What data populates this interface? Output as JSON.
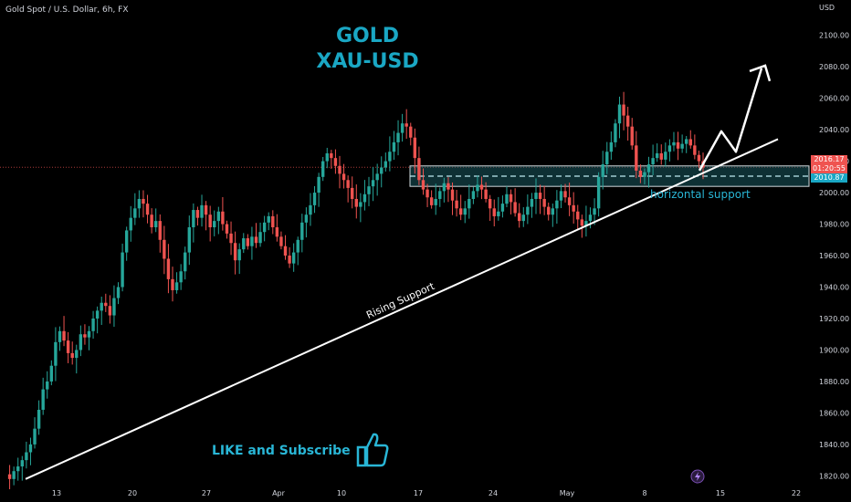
{
  "header": {
    "symbol": "Gold Spot / U.S. Dollar, 6h, FX"
  },
  "title": {
    "line1": "GOLD",
    "line2": "XAU-USD"
  },
  "annotations": {
    "rising_support": "Rising Support",
    "horizontal_support": "horizontal support",
    "like": "LIKE and Subscribe"
  },
  "price_axis": {
    "currency": "USD",
    "last_price": "2016.17",
    "countdown": "01:20:55",
    "second_price": "2010.87"
  },
  "colors": {
    "up": "#26a69a",
    "down": "#ef5350",
    "zone": "#1f6b74",
    "accent": "#1aa7c4",
    "price_tag": "#ef5350",
    "price_tag2": "#1aa7c4"
  },
  "icons": [
    "thumbs-up-icon",
    "lightning-icon"
  ],
  "chart_data": {
    "type": "candlestick",
    "x_ticks": [
      "13",
      "20",
      "27",
      "Apr",
      "10",
      "17",
      "24",
      "May",
      "8",
      "15",
      "22"
    ],
    "y_ticks": [
      1820,
      1840,
      1860,
      1880,
      1900,
      1920,
      1940,
      1960,
      1980,
      2000,
      2020,
      2040,
      2060,
      2080,
      2100
    ],
    "ylim": [
      1815,
      2112
    ],
    "zone": {
      "low": 2004,
      "high": 2017
    },
    "rising_support": {
      "start_price": 1818,
      "end_price": 2034
    },
    "projection": [
      2014,
      2039,
      2026,
      2079
    ],
    "closes": [
      1821,
      1818,
      1823,
      1826,
      1830,
      1835,
      1840,
      1850,
      1862,
      1875,
      1880,
      1890,
      1905,
      1912,
      1906,
      1898,
      1895,
      1900,
      1910,
      1908,
      1912,
      1920,
      1925,
      1930,
      1928,
      1922,
      1933,
      1940,
      1962,
      1976,
      1984,
      1990,
      1996,
      1993,
      1986,
      1978,
      1982,
      1970,
      1958,
      1945,
      1938,
      1943,
      1950,
      1962,
      1978,
      1989,
      1984,
      1992,
      1986,
      1978,
      1982,
      1988,
      1980,
      1974,
      1968,
      1957,
      1964,
      1971,
      1966,
      1972,
      1968,
      1975,
      1981,
      1985,
      1978,
      1972,
      1966,
      1960,
      1955,
      1962,
      1970,
      1981,
      1986,
      1992,
      2000,
      2010,
      2020,
      2025,
      2022,
      2017,
      2012,
      2008,
      2003,
      1996,
      1991,
      1994,
      1999,
      2004,
      2008,
      2012,
      2016,
      2020,
      2026,
      2032,
      2038,
      2044,
      2042,
      2035,
      2022,
      2008,
      2002,
      1997,
      1992,
      1996,
      2001,
      2006,
      2002,
      1995,
      1990,
      1986,
      1990,
      1996,
      2001,
      2005,
      2002,
      1996,
      1990,
      1985,
      1988,
      1993,
      1999,
      1994,
      1987,
      1982,
      1986,
      1991,
      1996,
      2000,
      1996,
      1991,
      1986,
      1990,
      1995,
      2001,
      1997,
      1992,
      1988,
      1983,
      1979,
      1982,
      1986,
      1990,
      2010,
      2018,
      2026,
      2032,
      2044,
      2056,
      2049,
      2042,
      2030,
      2014,
      2010,
      2013,
      2018,
      2022,
      2025,
      2021,
      2026,
      2030,
      2032,
      2028,
      2031,
      2034,
      2030,
      2024,
      2020,
      2016
    ]
  }
}
